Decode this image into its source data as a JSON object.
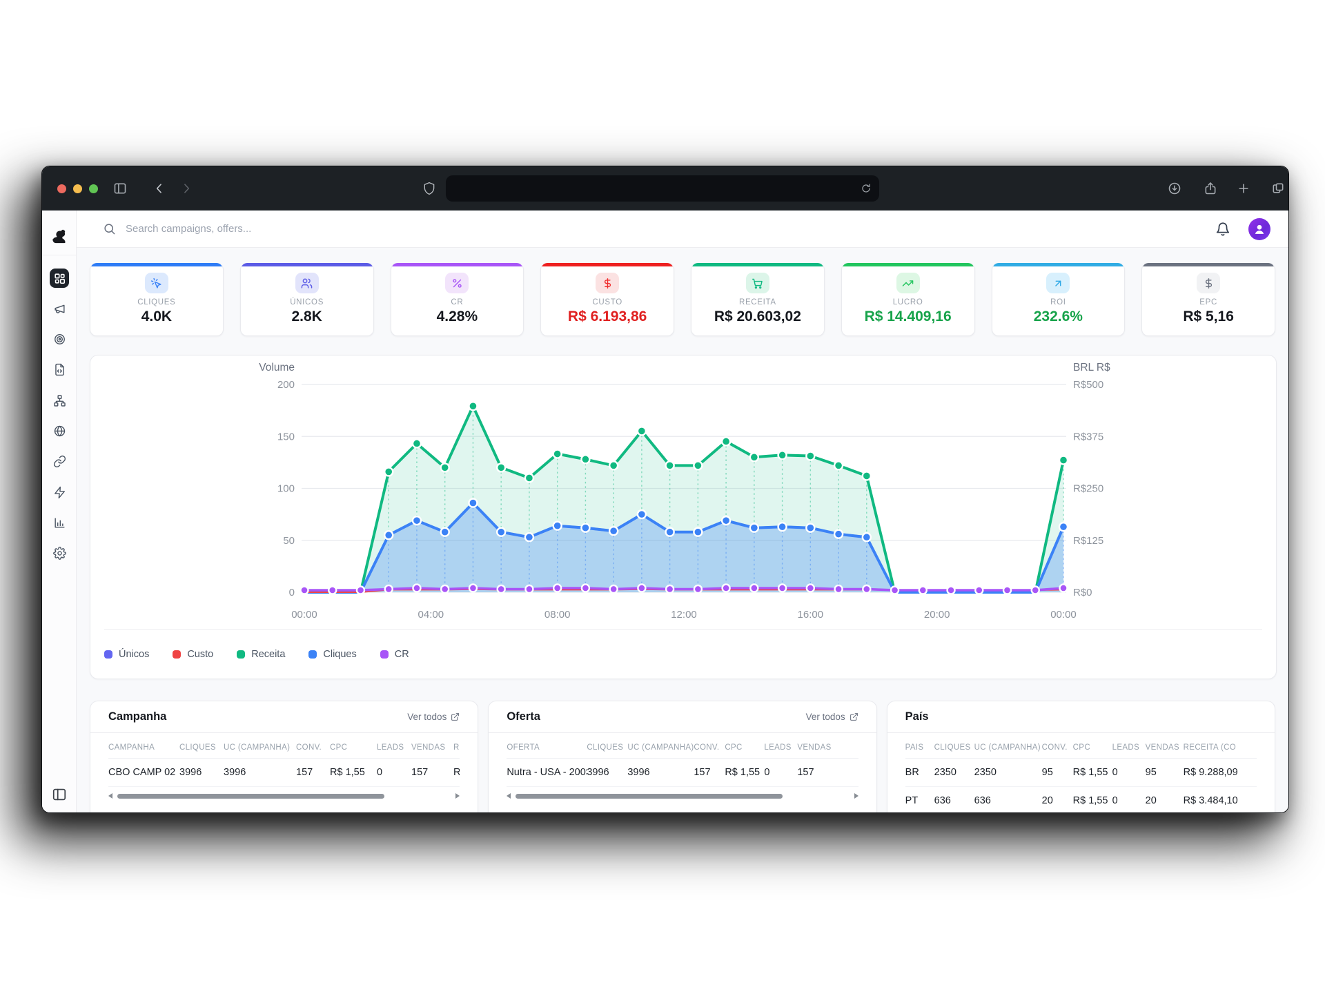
{
  "browser": {
    "traffic_lights": [
      "#ed6a5f",
      "#f5bd4f",
      "#61c554"
    ],
    "toolbar_icons": [
      "sidebar-toggle",
      "back",
      "forward",
      "shield",
      "reload",
      "download",
      "share",
      "new-tab",
      "tab-overview"
    ],
    "url_text": ""
  },
  "header": {
    "search_placeholder": "Search campaigns, offers...",
    "icons": [
      "bell",
      "avatar"
    ]
  },
  "sidebar": {
    "logo": "dog-logo",
    "items": [
      {
        "name": "dashboard",
        "icon": "grid-icon",
        "active": true
      },
      {
        "name": "campaigns",
        "icon": "megaphone-icon",
        "active": false
      },
      {
        "name": "offers",
        "icon": "target-icon",
        "active": false
      },
      {
        "name": "landers",
        "icon": "file-code-icon",
        "active": false
      },
      {
        "name": "flows",
        "icon": "network-icon",
        "active": false
      },
      {
        "name": "domains",
        "icon": "globe-icon",
        "active": false
      },
      {
        "name": "links",
        "icon": "link-icon",
        "active": false
      },
      {
        "name": "automation",
        "icon": "zap-icon",
        "active": false
      },
      {
        "name": "reports",
        "icon": "bar-chart-icon",
        "active": false
      },
      {
        "name": "settings",
        "icon": "gear-icon",
        "active": false
      }
    ],
    "footer_icon": "panel-left-icon"
  },
  "kpis": [
    {
      "label": "CLIQUES",
      "value": "4.0K",
      "accent": "#2e7cf6",
      "chip_bg": "#dce9fd",
      "icon": "click-icon",
      "icon_color": "#3b82f6",
      "value_color": "#15181e"
    },
    {
      "label": "ÚNICOS",
      "value": "2.8K",
      "accent": "#5b5be6",
      "chip_bg": "#e2e4fb",
      "icon": "users-icon",
      "icon_color": "#5b5be6",
      "value_color": "#15181e"
    },
    {
      "label": "CR",
      "value": "4.28%",
      "accent": "#a855f7",
      "chip_bg": "#f2e4fb",
      "icon": "percent-icon",
      "icon_color": "#a855f7",
      "value_color": "#15181e"
    },
    {
      "label": "CUSTO",
      "value": "R$ 6.193,86",
      "accent": "#ee2020",
      "chip_bg": "#fbe2e2",
      "icon": "dollar-icon",
      "icon_color": "#ef2d2d",
      "value_color": "#e02020"
    },
    {
      "label": "RECEITA",
      "value": "R$ 20.603,02",
      "accent": "#10b981",
      "chip_bg": "#dcf5e9",
      "icon": "cart-icon",
      "icon_color": "#10b981",
      "value_color": "#15181e"
    },
    {
      "label": "LUCRO",
      "value": "R$ 14.409,16",
      "accent": "#22c55e",
      "chip_bg": "#ddf7e4",
      "icon": "trend-up-icon",
      "icon_color": "#22c55e",
      "value_color": "#17a34a"
    },
    {
      "label": "ROI",
      "value": "232.6%",
      "accent": "#30ace4",
      "chip_bg": "#d8f0fd",
      "icon": "arrow-up-right-icon",
      "icon_color": "#2ea8e6",
      "value_color": "#17a34a"
    },
    {
      "label": "EPC",
      "value": "R$ 5,16",
      "accent": "#6b7280",
      "chip_bg": "#f1f2f4",
      "icon": "dollar-icon",
      "icon_color": "#6b7280",
      "value_color": "#15181e"
    }
  ],
  "chart_data": {
    "type": "area",
    "x_labels": [
      "00:00",
      "04:00",
      "08:00",
      "12:00",
      "16:00",
      "20:00",
      "00:00"
    ],
    "left_axis": {
      "title": "Volume",
      "ticks": [
        "0",
        "50",
        "100",
        "150",
        "200"
      ],
      "max": 200
    },
    "right_axis": {
      "title": "BRL R$",
      "ticks": [
        "R$0",
        "R$125",
        "R$250",
        "R$375",
        "R$500"
      ],
      "max": 500
    },
    "grid": true,
    "legend_position": "bottom",
    "legend": [
      {
        "label": "Únicos",
        "color": "#6366f1"
      },
      {
        "label": "Custo",
        "color": "#ef4444"
      },
      {
        "label": "Receita",
        "color": "#10b981"
      },
      {
        "label": "Cliques",
        "color": "#3b82f6"
      },
      {
        "label": "CR",
        "color": "#a855f7"
      }
    ],
    "draw_order": [
      "Receita",
      "Únicos",
      "Cliques",
      "Custo",
      "CR"
    ],
    "series": [
      {
        "name": "Únicos",
        "color": "#6366f1",
        "axis": "left",
        "fill": false,
        "dots": "none",
        "width": 3.5,
        "values": [
          0,
          0,
          0,
          55,
          69,
          58,
          86,
          58,
          53,
          64,
          62,
          59,
          75,
          58,
          58,
          69,
          62,
          63,
          62,
          56,
          53,
          0,
          0,
          0,
          0,
          0,
          0,
          63
        ]
      },
      {
        "name": "Custo",
        "color": "#ef4444",
        "axis": "right",
        "fill": false,
        "dots": "none",
        "width": 2,
        "values": [
          0,
          0,
          0,
          6,
          6,
          6,
          7,
          6,
          6,
          6,
          6,
          6,
          7,
          6,
          6,
          6,
          6,
          6,
          6,
          6,
          6,
          5,
          5,
          5,
          5,
          5,
          5,
          6
        ]
      },
      {
        "name": "Receita",
        "color": "#10b981",
        "axis": "right",
        "fill": true,
        "fill_color": "rgba(16,185,129,0.13)",
        "dots": "nonzero",
        "width": 4,
        "values": [
          0,
          0,
          0,
          290,
          358,
          300,
          448,
          300,
          275,
          333,
          320,
          305,
          388,
          305,
          305,
          363,
          325,
          330,
          328,
          305,
          280,
          0,
          0,
          0,
          0,
          0,
          0,
          318
        ]
      },
      {
        "name": "Cliques",
        "color": "#3b82f6",
        "axis": "left",
        "fill": true,
        "fill_color": "rgba(59,130,246,0.30)",
        "dots": "nonzero",
        "width": 4,
        "values": [
          0,
          0,
          0,
          55,
          69,
          58,
          86,
          58,
          53,
          64,
          62,
          59,
          75,
          58,
          58,
          69,
          62,
          63,
          62,
          56,
          53,
          0,
          0,
          0,
          0,
          0,
          0,
          63
        ]
      },
      {
        "name": "CR",
        "color": "#a855f7",
        "axis": "left",
        "fill": false,
        "dots": "all",
        "width": 3.5,
        "values": [
          2,
          2,
          2,
          3,
          4,
          3,
          4,
          3,
          3,
          4,
          4,
          3,
          4,
          3,
          3,
          4,
          4,
          4,
          4,
          3,
          3,
          2,
          2,
          2,
          2,
          2,
          2,
          4
        ]
      }
    ]
  },
  "tables": [
    {
      "id": "campanha",
      "title": "Campanha",
      "link": "Ver todos",
      "scrollbar": true,
      "columns": [
        "CAMPANHA",
        "CLIQUES",
        "UC (CAMPANHA)",
        "CONV.",
        "CPC",
        "LEADS",
        "VENDAS",
        "R"
      ],
      "rows": [
        [
          "CBO CAMP 02",
          "3996",
          "3996",
          "157",
          "R$ 1,55",
          "0",
          "157",
          "R"
        ]
      ]
    },
    {
      "id": "oferta",
      "title": "Oferta",
      "link": "Ver todos",
      "scrollbar": true,
      "columns": [
        "OFERTA",
        "CLIQUES",
        "UC (CAMPANHA)",
        "CONV.",
        "CPC",
        "LEADS",
        "VENDAS"
      ],
      "rows": [
        [
          "Nutra - USA - 200$",
          "3996",
          "3996",
          "157",
          "R$ 1,55",
          "0",
          "157"
        ]
      ]
    },
    {
      "id": "pais",
      "title": "País",
      "link": null,
      "scrollbar": false,
      "columns": [
        "PAÍS",
        "CLIQUES",
        "UC (CAMPANHA)",
        "CONV.",
        "CPC",
        "LEADS",
        "VENDAS",
        "RECEITA (CO"
      ],
      "rows": [
        [
          "BR",
          "2350",
          "2350",
          "95",
          "R$ 1,55",
          "0",
          "95",
          "R$ 9.288,09"
        ],
        [
          "PT",
          "636",
          "636",
          "20",
          "R$ 1,55",
          "0",
          "20",
          "R$ 3.484,10"
        ]
      ]
    }
  ]
}
